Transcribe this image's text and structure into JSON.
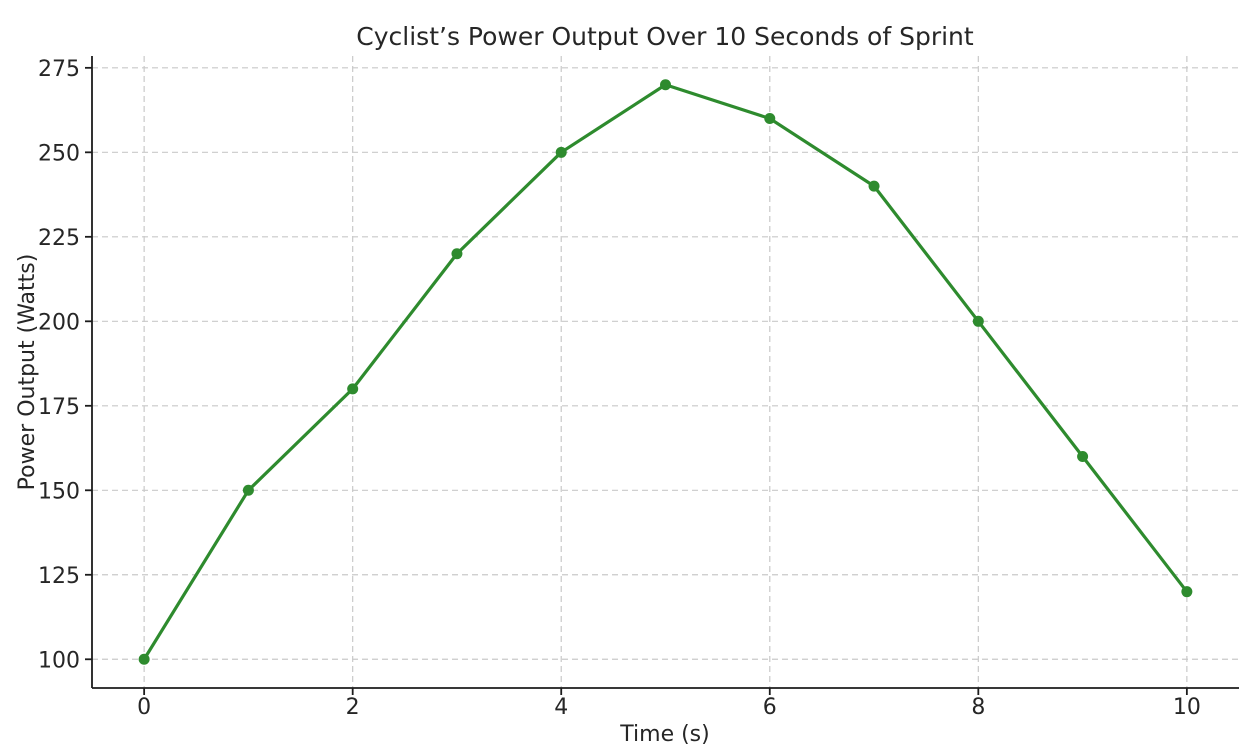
{
  "chart_data": {
    "type": "line",
    "title": "Cyclist’s Power Output Over 10 Seconds of Sprint",
    "xlabel": "Time (s)",
    "ylabel": "Power Output (Watts)",
    "x": [
      0,
      1,
      2,
      3,
      4,
      5,
      6,
      7,
      8,
      9,
      10
    ],
    "y": [
      100,
      150,
      180,
      220,
      250,
      270,
      260,
      240,
      200,
      160,
      120
    ],
    "xlim": [
      -0.5,
      10.5
    ],
    "ylim": [
      91.5,
      278.5
    ],
    "x_ticks": [
      0,
      2,
      4,
      6,
      8,
      10
    ],
    "y_ticks": [
      100,
      125,
      150,
      175,
      200,
      225,
      250,
      275
    ],
    "grid": true,
    "grid_style": "dashed",
    "legend": false,
    "marker": "circle",
    "colors": {
      "line": "#2e8b2e",
      "marker": "#2e8b2e",
      "grid": "#c9c9c9",
      "spine": "#1c1c1c",
      "text": "#262626",
      "background": "#ffffff"
    }
  }
}
